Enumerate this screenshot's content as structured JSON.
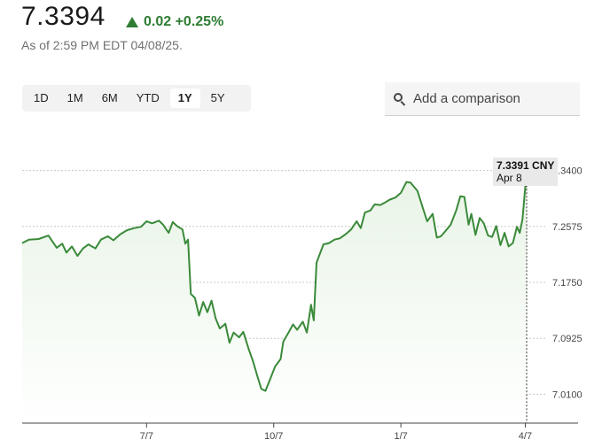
{
  "header": {
    "price": "7.3394",
    "change": "0.02 +0.25%",
    "as_of": "As of 2:59 PM EDT 04/08/25."
  },
  "range_tabs": [
    "1D",
    "1M",
    "6M",
    "YTD",
    "1Y",
    "5Y"
  ],
  "active_range": "1Y",
  "compare": {
    "placeholder": "Add a comparison"
  },
  "tooltip": {
    "value": "7.3391 CNY",
    "date": "Apr 8"
  },
  "colors": {
    "line": "#3a8a3a",
    "up": "#2e7d32",
    "fill": "#e8f4e6"
  },
  "chart_data": {
    "type": "area",
    "x_ticks": [
      "7/7",
      "10/7",
      "1/7",
      "4/7"
    ],
    "y_ticks": [
      "7.3400",
      "7.2575",
      "7.1750",
      "7.0925",
      "7.0100"
    ],
    "ylim": [
      6.9675,
      7.3825
    ],
    "x_range": [
      "2024-04-08",
      "2025-04-08"
    ],
    "grid": true,
    "series": [
      {
        "values": [
          [
            "2024-04-08",
            7.233
          ],
          [
            "2024-04-13",
            7.238
          ],
          [
            "2024-04-20",
            7.239
          ],
          [
            "2024-04-27",
            7.244
          ],
          [
            "2024-05-03",
            7.226
          ],
          [
            "2024-05-07",
            7.232
          ],
          [
            "2024-05-10",
            7.219
          ],
          [
            "2024-05-14",
            7.228
          ],
          [
            "2024-05-18",
            7.214
          ],
          [
            "2024-05-22",
            7.225
          ],
          [
            "2024-05-26",
            7.231
          ],
          [
            "2024-05-31",
            7.225
          ],
          [
            "2024-06-04",
            7.238
          ],
          [
            "2024-06-09",
            7.243
          ],
          [
            "2024-06-13",
            7.237
          ],
          [
            "2024-06-18",
            7.246
          ],
          [
            "2024-06-23",
            7.252
          ],
          [
            "2024-06-28",
            7.255
          ],
          [
            "2024-07-03",
            7.257
          ],
          [
            "2024-07-07",
            7.265
          ],
          [
            "2024-07-11",
            7.262
          ],
          [
            "2024-07-16",
            7.266
          ],
          [
            "2024-07-19",
            7.26
          ],
          [
            "2024-07-23",
            7.248
          ],
          [
            "2024-07-26",
            7.264
          ],
          [
            "2024-07-29",
            7.258
          ],
          [
            "2024-08-02",
            7.253
          ],
          [
            "2024-08-04",
            7.232
          ],
          [
            "2024-08-06",
            7.238
          ],
          [
            "2024-08-08",
            7.158
          ],
          [
            "2024-08-11",
            7.152
          ],
          [
            "2024-08-14",
            7.126
          ],
          [
            "2024-08-17",
            7.146
          ],
          [
            "2024-08-20",
            7.131
          ],
          [
            "2024-08-23",
            7.148
          ],
          [
            "2024-08-26",
            7.122
          ],
          [
            "2024-08-29",
            7.107
          ],
          [
            "2024-09-02",
            7.114
          ],
          [
            "2024-09-05",
            7.086
          ],
          [
            "2024-09-08",
            7.101
          ],
          [
            "2024-09-12",
            7.094
          ],
          [
            "2024-09-15",
            7.102
          ],
          [
            "2024-09-19",
            7.076
          ],
          [
            "2024-09-22",
            7.059
          ],
          [
            "2024-09-25",
            7.038
          ],
          [
            "2024-09-28",
            7.018
          ],
          [
            "2024-10-01",
            7.015
          ],
          [
            "2024-10-04",
            7.03
          ],
          [
            "2024-10-08",
            7.051
          ],
          [
            "2024-10-12",
            7.062
          ],
          [
            "2024-10-14",
            7.088
          ],
          [
            "2024-10-18",
            7.102
          ],
          [
            "2024-10-21",
            7.113
          ],
          [
            "2024-10-24",
            7.105
          ],
          [
            "2024-10-28",
            7.117
          ],
          [
            "2024-10-31",
            7.101
          ],
          [
            "2024-11-03",
            7.142
          ],
          [
            "2024-11-05",
            7.119
          ],
          [
            "2024-11-07",
            7.204
          ],
          [
            "2024-11-12",
            7.231
          ],
          [
            "2024-11-16",
            7.233
          ],
          [
            "2024-11-20",
            7.238
          ],
          [
            "2024-11-24",
            7.24
          ],
          [
            "2024-11-28",
            7.246
          ],
          [
            "2024-12-02",
            7.253
          ],
          [
            "2024-12-06",
            7.265
          ],
          [
            "2024-12-09",
            7.255
          ],
          [
            "2024-12-12",
            7.278
          ],
          [
            "2024-12-16",
            7.281
          ],
          [
            "2024-12-19",
            7.29
          ],
          [
            "2024-12-23",
            7.289
          ],
          [
            "2024-12-26",
            7.292
          ],
          [
            "2024-12-30",
            7.297
          ],
          [
            "2025-01-03",
            7.3
          ],
          [
            "2025-01-07",
            7.307
          ],
          [
            "2025-01-11",
            7.323
          ],
          [
            "2025-01-14",
            7.322
          ],
          [
            "2025-01-19",
            7.31
          ],
          [
            "2025-01-23",
            7.284
          ],
          [
            "2025-01-26",
            7.265
          ],
          [
            "2025-01-30",
            7.276
          ],
          [
            "2025-02-02",
            7.241
          ],
          [
            "2025-02-05",
            7.243
          ],
          [
            "2025-02-08",
            7.25
          ],
          [
            "2025-02-12",
            7.26
          ],
          [
            "2025-02-16",
            7.281
          ],
          [
            "2025-02-19",
            7.302
          ],
          [
            "2025-02-22",
            7.301
          ],
          [
            "2025-02-25",
            7.26
          ],
          [
            "2025-02-27",
            7.276
          ],
          [
            "2025-03-02",
            7.245
          ],
          [
            "2025-03-05",
            7.27
          ],
          [
            "2025-03-08",
            7.262
          ],
          [
            "2025-03-11",
            7.244
          ],
          [
            "2025-03-14",
            7.242
          ],
          [
            "2025-03-17",
            7.258
          ],
          [
            "2025-03-20",
            7.23
          ],
          [
            "2025-03-23",
            7.248
          ],
          [
            "2025-03-26",
            7.228
          ],
          [
            "2025-03-29",
            7.233
          ],
          [
            "2025-04-01",
            7.257
          ],
          [
            "2025-04-03",
            7.248
          ],
          [
            "2025-04-05",
            7.268
          ],
          [
            "2025-04-08",
            7.3391
          ]
        ]
      }
    ]
  }
}
